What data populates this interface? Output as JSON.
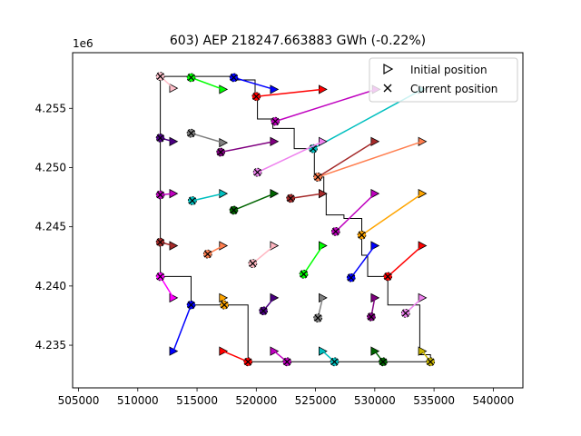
{
  "chart_data": {
    "type": "scatter",
    "title": "603) AEP 218247.663883 GWh (-0.22%)",
    "xlabel": "",
    "ylabel": "",
    "xlim": [
      504500,
      542500
    ],
    "ylim": [
      4231400,
      4259700
    ],
    "y_offset_label": "1e6",
    "x_ticks": [
      505000,
      510000,
      515000,
      520000,
      525000,
      530000,
      535000,
      540000
    ],
    "x_tick_labels": [
      "505000",
      "510000",
      "515000",
      "520000",
      "525000",
      "530000",
      "535000",
      "540000"
    ],
    "y_ticks": [
      4235000,
      4240000,
      4245000,
      4250000,
      4255000
    ],
    "y_tick_labels": [
      "4.235",
      "4.240",
      "4.245",
      "4.250",
      "4.255"
    ],
    "grid": false,
    "legend": {
      "placement": "upper right",
      "entries": [
        {
          "marker": "triangle-right",
          "label": "Initial position"
        },
        {
          "marker": "x",
          "label": "Current position"
        }
      ]
    },
    "boundary": [
      [
        511900,
        4257700
      ],
      [
        518200,
        4257700
      ],
      [
        518200,
        4257400
      ],
      [
        519900,
        4257400
      ],
      [
        519900,
        4256000
      ],
      [
        520100,
        4256000
      ],
      [
        520100,
        4254100
      ],
      [
        521400,
        4254100
      ],
      [
        521400,
        4253300
      ],
      [
        523200,
        4253300
      ],
      [
        523200,
        4251600
      ],
      [
        524900,
        4251600
      ],
      [
        524900,
        4249200
      ],
      [
        525700,
        4249200
      ],
      [
        525700,
        4247800
      ],
      [
        525900,
        4247800
      ],
      [
        525900,
        4246000
      ],
      [
        527400,
        4246000
      ],
      [
        527400,
        4245700
      ],
      [
        528900,
        4245700
      ],
      [
        528900,
        4242600
      ],
      [
        529400,
        4242600
      ],
      [
        529400,
        4240800
      ],
      [
        531100,
        4240800
      ],
      [
        531100,
        4238400
      ],
      [
        533800,
        4238400
      ],
      [
        533800,
        4234200
      ],
      [
        534700,
        4234200
      ],
      [
        534700,
        4233600
      ],
      [
        519300,
        4233600
      ],
      [
        519300,
        4238400
      ],
      [
        514500,
        4238400
      ],
      [
        514500,
        4240800
      ],
      [
        511900,
        4240800
      ],
      [
        511900,
        4257700
      ]
    ],
    "turbines": [
      {
        "initial": [
          513000,
          4256700
        ],
        "current": [
          511900,
          4257700
        ],
        "color": "#ffc0cb"
      },
      {
        "initial": [
          517200,
          4256600
        ],
        "current": [
          514500,
          4257600
        ],
        "color": "#00ff00"
      },
      {
        "initial": [
          521500,
          4256600
        ],
        "current": [
          518100,
          4257600
        ],
        "color": "#0000ff"
      },
      {
        "initial": [
          525600,
          4256600
        ],
        "current": [
          520000,
          4256000
        ],
        "color": "#ff0000"
      },
      {
        "initial": [
          530100,
          4256600
        ],
        "current": [
          521600,
          4253900
        ],
        "color": "#bf00bf"
      },
      {
        "initial": [
          534000,
          4256600
        ],
        "current": [
          524800,
          4251600
        ],
        "color": "#00bfbf"
      },
      {
        "initial": [
          513000,
          4252200
        ],
        "current": [
          511900,
          4252500
        ],
        "color": "#4b0082"
      },
      {
        "initial": [
          517200,
          4252100
        ],
        "current": [
          514500,
          4252900
        ],
        "color": "#808080"
      },
      {
        "initial": [
          521500,
          4252200
        ],
        "current": [
          517000,
          4251300
        ],
        "color": "#800080"
      },
      {
        "initial": [
          525600,
          4252200
        ],
        "current": [
          520100,
          4249600
        ],
        "color": "#ee82ee"
      },
      {
        "initial": [
          530000,
          4252200
        ],
        "current": [
          525200,
          4249200
        ],
        "color": "#a52a2a"
      },
      {
        "initial": [
          534000,
          4252200
        ],
        "current": [
          525200,
          4249200
        ],
        "color": "#ff7f50"
      },
      {
        "initial": [
          513000,
          4247800
        ],
        "current": [
          511900,
          4247700
        ],
        "color": "#bf00bf"
      },
      {
        "initial": [
          517200,
          4247800
        ],
        "current": [
          514600,
          4247200
        ],
        "color": "#00bfbf"
      },
      {
        "initial": [
          521500,
          4247800
        ],
        "current": [
          518100,
          4246400
        ],
        "color": "#006400"
      },
      {
        "initial": [
          525600,
          4247800
        ],
        "current": [
          522900,
          4247400
        ],
        "color": "#a52a2a"
      },
      {
        "initial": [
          530000,
          4247800
        ],
        "current": [
          526700,
          4244600
        ],
        "color": "#bf00bf"
      },
      {
        "initial": [
          534000,
          4247800
        ],
        "current": [
          528900,
          4244300
        ],
        "color": "#ffa500"
      },
      {
        "initial": [
          513000,
          4243400
        ],
        "current": [
          511900,
          4243700
        ],
        "color": "#a52a2a"
      },
      {
        "initial": [
          517200,
          4243400
        ],
        "current": [
          515900,
          4242700
        ],
        "color": "#ff7f50"
      },
      {
        "initial": [
          521500,
          4243400
        ],
        "current": [
          519700,
          4241900
        ],
        "color": "#ffb6c1"
      },
      {
        "initial": [
          525600,
          4243400
        ],
        "current": [
          524000,
          4241000
        ],
        "color": "#00ff00"
      },
      {
        "initial": [
          530000,
          4243400
        ],
        "current": [
          528000,
          4240700
        ],
        "color": "#0000ff"
      },
      {
        "initial": [
          534000,
          4243400
        ],
        "current": [
          531100,
          4240800
        ],
        "color": "#ff0000"
      },
      {
        "initial": [
          513000,
          4239000
        ],
        "current": [
          511900,
          4240800
        ],
        "color": "#ff00ff"
      },
      {
        "initial": [
          517200,
          4239000
        ],
        "current": [
          517300,
          4238400
        ],
        "color": "#ffa500"
      },
      {
        "initial": [
          521500,
          4239000
        ],
        "current": [
          520600,
          4237900
        ],
        "color": "#4b0082"
      },
      {
        "initial": [
          525600,
          4239000
        ],
        "current": [
          525200,
          4237300
        ],
        "color": "#808080"
      },
      {
        "initial": [
          530000,
          4239000
        ],
        "current": [
          529700,
          4237400
        ],
        "color": "#800080"
      },
      {
        "initial": [
          534000,
          4239000
        ],
        "current": [
          532600,
          4237700
        ],
        "color": "#ee82ee"
      },
      {
        "initial": [
          513000,
          4234500
        ],
        "current": [
          514500,
          4238400
        ],
        "color": "#0000ff"
      },
      {
        "initial": [
          517200,
          4234500
        ],
        "current": [
          519300,
          4233600
        ],
        "color": "#ff0000"
      },
      {
        "initial": [
          521500,
          4234500
        ],
        "current": [
          522600,
          4233600
        ],
        "color": "#bf00bf"
      },
      {
        "initial": [
          525600,
          4234500
        ],
        "current": [
          526600,
          4233600
        ],
        "color": "#00bfbf"
      },
      {
        "initial": [
          530000,
          4234500
        ],
        "current": [
          530700,
          4233600
        ],
        "color": "#006400"
      },
      {
        "initial": [
          534000,
          4234500
        ],
        "current": [
          534700,
          4233600
        ],
        "color": "#c8b400"
      }
    ]
  }
}
